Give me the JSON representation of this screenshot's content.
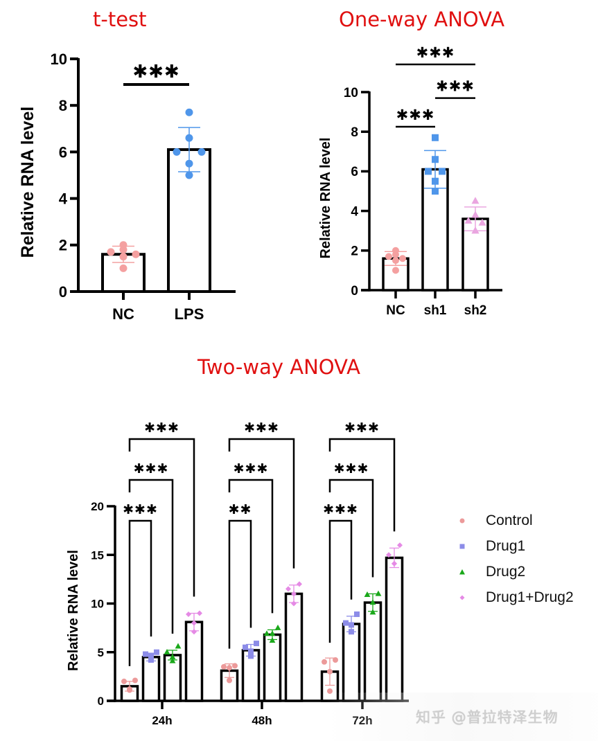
{
  "chart_data": [
    {
      "id": "ttest",
      "type": "bar",
      "title": "t-test",
      "ylabel": "Relative RNA level",
      "xlabel": "",
      "ylim": [
        0,
        10
      ],
      "yticks": [
        0,
        2,
        4,
        6,
        8,
        10
      ],
      "grid": false,
      "categories": [
        "NC",
        "LPS"
      ],
      "series": [
        {
          "name": "NC",
          "mean": 1.6,
          "sd": 0.35,
          "color": "#f4a0a0",
          "marker": "circle",
          "points": [
            2.0,
            1.8,
            1.7,
            1.6,
            1.5,
            1.0
          ]
        },
        {
          "name": "LPS",
          "mean": 6.1,
          "sd": 0.95,
          "color": "#4f96ea",
          "marker": "circle",
          "points": [
            7.7,
            6.6,
            6.0,
            6.0,
            5.5,
            5.0
          ]
        }
      ],
      "significance": [
        {
          "from": 0,
          "to": 1,
          "label": "***",
          "y": 8.9
        }
      ]
    },
    {
      "id": "oneway",
      "type": "bar",
      "title": "One-way ANOVA",
      "ylabel": "Relative RNA level",
      "xlabel": "",
      "ylim": [
        0,
        10
      ],
      "yticks": [
        0,
        2,
        4,
        6,
        8,
        10
      ],
      "grid": false,
      "categories": [
        "NC",
        "sh1",
        "sh2"
      ],
      "series": [
        {
          "name": "NC",
          "mean": 1.6,
          "sd": 0.35,
          "color": "#f4a0a0",
          "marker": "circle",
          "points": [
            2.0,
            1.8,
            1.7,
            1.6,
            1.5,
            1.0
          ]
        },
        {
          "name": "sh1",
          "mean": 6.1,
          "sd": 0.95,
          "color": "#4f96ea",
          "marker": "square",
          "points": [
            7.7,
            6.6,
            6.0,
            6.0,
            5.5,
            5.0
          ]
        },
        {
          "name": "sh2",
          "mean": 3.6,
          "sd": 0.6,
          "color": "#eaa6e0",
          "marker": "triangle",
          "points": [
            4.5,
            3.8,
            3.5,
            3.4,
            3.0,
            3.0
          ]
        }
      ],
      "significance": [
        {
          "from": 0,
          "to": 1,
          "label": "***",
          "y": 8.25
        },
        {
          "from": 1,
          "to": 2,
          "label": "***",
          "y": 9.7
        },
        {
          "from": 0,
          "to": 2,
          "label": "***",
          "y": 11.4
        }
      ]
    },
    {
      "id": "twoway",
      "type": "bar",
      "title": "Two-way ANOVA",
      "ylabel": "Relative RNA level",
      "xlabel": "",
      "ylim": [
        0,
        20
      ],
      "yticks": [
        0,
        5,
        10,
        15,
        20
      ],
      "grid": false,
      "categories": [
        "24h",
        "48h",
        "72h"
      ],
      "legend_position": "right",
      "series": [
        {
          "name": "Control",
          "color": "#ec9a9a",
          "marker": "circle",
          "means": [
            1.5,
            3.1,
            3.0
          ],
          "sds": [
            0.5,
            0.7,
            1.4
          ],
          "points": [
            [
              2.1,
              2.0,
              1.2,
              1.1
            ],
            [
              3.6,
              3.5,
              3.4,
              2.1
            ],
            [
              4.2,
              4.0,
              3.0,
              1.0
            ]
          ]
        },
        {
          "name": "Drug1",
          "color": "#8c8ce8",
          "marker": "square",
          "means": [
            4.5,
            5.2,
            7.9
          ],
          "sds": [
            0.4,
            0.6,
            0.8
          ],
          "points": [
            [
              5.0,
              4.8,
              4.6,
              4.2
            ],
            [
              5.9,
              5.5,
              5.1,
              4.6
            ],
            [
              8.9,
              8.0,
              7.8,
              7.1
            ]
          ]
        },
        {
          "name": "Drug2",
          "color": "#1aa81a",
          "marker": "triangle",
          "means": [
            4.7,
            6.8,
            10.1
          ],
          "sds": [
            0.5,
            0.5,
            0.9
          ],
          "points": [
            [
              5.6,
              5.0,
              4.5,
              4.1
            ],
            [
              7.5,
              6.9,
              6.9,
              6.2
            ],
            [
              11.0,
              10.9,
              10.1,
              9.1
            ]
          ]
        },
        {
          "name": "Drug1+Drug2",
          "color": "#e58ae5",
          "marker": "diamond",
          "means": [
            8.1,
            11.0,
            14.7
          ],
          "sds": [
            0.9,
            0.9,
            1.0
          ],
          "points": [
            [
              9.0,
              8.9,
              8.0,
              7.1
            ],
            [
              12.0,
              11.5,
              11.0,
              10.0
            ],
            [
              16.0,
              15.0,
              14.1,
              14.1
            ]
          ]
        }
      ],
      "significance": [
        {
          "group": 0,
          "from": 0,
          "to": 1,
          "label": "***"
        },
        {
          "group": 0,
          "from": 0,
          "to": 2,
          "label": "***"
        },
        {
          "group": 0,
          "from": 0,
          "to": 3,
          "label": "***"
        },
        {
          "group": 1,
          "from": 0,
          "to": 1,
          "label": "**"
        },
        {
          "group": 1,
          "from": 0,
          "to": 2,
          "label": "***"
        },
        {
          "group": 1,
          "from": 0,
          "to": 3,
          "label": "***"
        },
        {
          "group": 2,
          "from": 0,
          "to": 1,
          "label": "***"
        },
        {
          "group": 2,
          "from": 0,
          "to": 2,
          "label": "***"
        },
        {
          "group": 2,
          "from": 0,
          "to": 3,
          "label": "***"
        }
      ]
    }
  ],
  "legend": {
    "items": [
      {
        "label": "Control",
        "icon": "circle-marker-icon"
      },
      {
        "label": "Drug1",
        "icon": "square-marker-icon"
      },
      {
        "label": "Drug2",
        "icon": "triangle-marker-icon"
      },
      {
        "label": "Drug1+Drug2",
        "icon": "diamond-marker-icon"
      }
    ]
  },
  "titles": {
    "ttest": "t-test",
    "oneway": "One-way ANOVA",
    "twoway": "Two-way ANOVA"
  },
  "watermark": "知乎 @普拉特泽生物"
}
